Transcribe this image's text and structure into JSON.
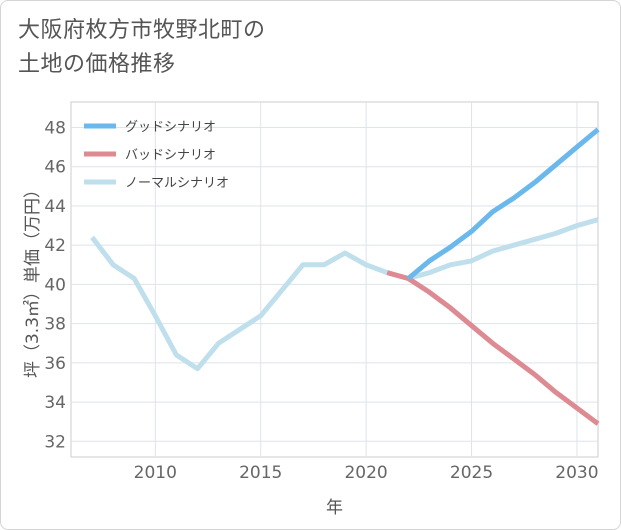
{
  "title": "大阪府枚方市牧野北町の\n土地の価格推移",
  "chart_data": {
    "type": "line",
    "xlabel": "年",
    "ylabel": "坪（3.3㎡）単価（万円）",
    "xlim": [
      2006,
      2031
    ],
    "ylim": [
      31.2,
      49.3
    ],
    "x_ticks": [
      2010,
      2015,
      2020,
      2025,
      2030
    ],
    "y_ticks": [
      32,
      34,
      36,
      38,
      40,
      42,
      44,
      46,
      48
    ],
    "grid": true,
    "legend_position": "top-left",
    "series": [
      {
        "name": "グッドシナリオ",
        "color": "#6bb8ec",
        "points": [
          [
            2022,
            40.3
          ],
          [
            2023,
            41.2
          ],
          [
            2024,
            41.9
          ],
          [
            2025,
            42.7
          ],
          [
            2026,
            43.7
          ],
          [
            2027,
            44.4
          ],
          [
            2028,
            45.2
          ],
          [
            2029,
            46.1
          ],
          [
            2030,
            47.0
          ],
          [
            2031,
            47.9
          ]
        ]
      },
      {
        "name": "バッドシナリオ",
        "color": "#de8a92",
        "points": [
          [
            2021,
            40.6
          ],
          [
            2022,
            40.3
          ],
          [
            2023,
            39.6
          ],
          [
            2024,
            38.8
          ],
          [
            2025,
            37.9
          ],
          [
            2026,
            37.0
          ],
          [
            2027,
            36.2
          ],
          [
            2028,
            35.4
          ],
          [
            2029,
            34.5
          ],
          [
            2030,
            33.7
          ],
          [
            2031,
            32.9
          ]
        ]
      },
      {
        "name": "ノーマルシナリオ",
        "color": "#bfdfed",
        "points": [
          [
            2007,
            42.4
          ],
          [
            2008,
            41.0
          ],
          [
            2009,
            40.3
          ],
          [
            2010,
            38.4
          ],
          [
            2011,
            36.4
          ],
          [
            2012,
            35.7
          ],
          [
            2013,
            37.0
          ],
          [
            2014,
            37.7
          ],
          [
            2015,
            38.4
          ],
          [
            2016,
            39.7
          ],
          [
            2017,
            41.0
          ],
          [
            2018,
            41.0
          ],
          [
            2019,
            41.6
          ],
          [
            2020,
            41.0
          ],
          [
            2021,
            40.6
          ],
          [
            2022,
            40.3
          ],
          [
            2023,
            40.6
          ],
          [
            2024,
            41.0
          ],
          [
            2025,
            41.2
          ],
          [
            2026,
            41.7
          ],
          [
            2027,
            42.0
          ],
          [
            2028,
            42.3
          ],
          [
            2029,
            42.6
          ],
          [
            2030,
            43.0
          ],
          [
            2031,
            43.3
          ]
        ]
      }
    ]
  }
}
